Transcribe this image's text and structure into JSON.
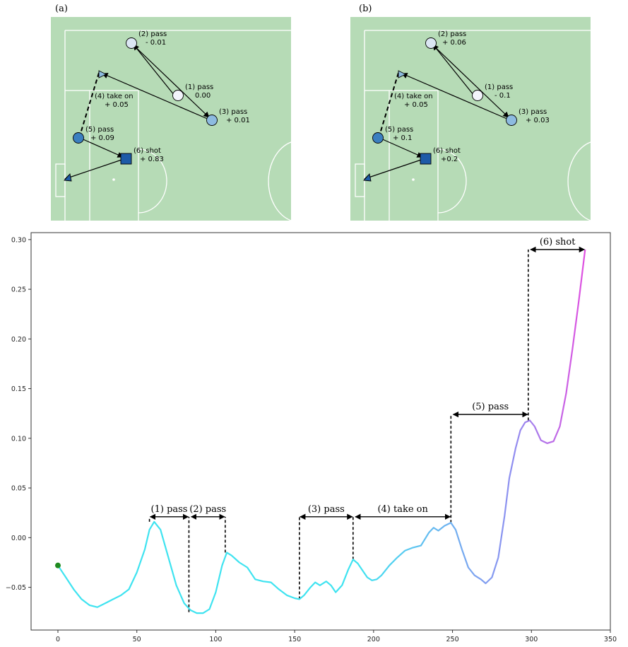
{
  "panels": [
    {
      "label": "(a)",
      "actions": [
        {
          "num": "(1)",
          "type": "pass",
          "value": "0.00",
          "shape": "circle",
          "color": "#f3f4fb"
        },
        {
          "num": "(2)",
          "type": "pass",
          "value": "- 0.01",
          "shape": "circle",
          "color": "#dbe6f3"
        },
        {
          "num": "(3)",
          "type": "pass",
          "value": "+ 0.01",
          "shape": "circle",
          "color": "#8dbbe0"
        },
        {
          "num": "(4)",
          "type": "take on",
          "value": "+ 0.05",
          "shape": "triangle",
          "color": "#8dbbe0"
        },
        {
          "num": "(5)",
          "type": "pass",
          "value": "+ 0.09",
          "shape": "circle",
          "color": "#3b7fc0"
        },
        {
          "num": "(6)",
          "type": "shot",
          "value": "+ 0.83",
          "shape": "square",
          "color": "#1d5ba8"
        }
      ]
    },
    {
      "label": "(b)",
      "actions": [
        {
          "num": "(1)",
          "type": "pass",
          "value": "- 0.1",
          "shape": "circle",
          "color": "#f3f4fb"
        },
        {
          "num": "(2)",
          "type": "pass",
          "value": "+ 0.06",
          "shape": "circle",
          "color": "#dbe6f3"
        },
        {
          "num": "(3)",
          "type": "pass",
          "value": "+ 0.03",
          "shape": "circle",
          "color": "#8dbbe0"
        },
        {
          "num": "(4)",
          "type": "take on",
          "value": "+ 0.05",
          "shape": "triangle",
          "color": "#8dbbe0"
        },
        {
          "num": "(5)",
          "type": "pass",
          "value": "+ 0.1",
          "shape": "circle",
          "color": "#3b7fc0"
        },
        {
          "num": "(6)",
          "type": "shot",
          "value": "+0.2",
          "shape": "square",
          "color": "#1d5ba8"
        }
      ]
    }
  ],
  "colors": {
    "pitch": "#b6dbb6",
    "pitch_lines": "#ffffff",
    "curve_start": "#3fe3f0",
    "curve_mid": "#8f8ff0",
    "curve_end": "#e14fe0",
    "start_marker": "#1f8a1f"
  },
  "chart_data": {
    "type": "line",
    "xlim": [
      -17,
      350
    ],
    "ylim": [
      -0.093,
      0.307
    ],
    "xticks": [
      0,
      50,
      100,
      150,
      200,
      250,
      300,
      350
    ],
    "yticks": [
      -0.05,
      0.0,
      0.05,
      0.1,
      0.15,
      0.2,
      0.25,
      0.3
    ],
    "ytick_labels": [
      "−0.05",
      "0.00",
      "0.05",
      "0.10",
      "0.15",
      "0.20",
      "0.25",
      "0.30"
    ],
    "grid": false,
    "series": [
      {
        "x": [
          0,
          5,
          10,
          15,
          20,
          25,
          30,
          35,
          40,
          45,
          50,
          55,
          58,
          61,
          65,
          70,
          75,
          80,
          84,
          88,
          92,
          96,
          100,
          104,
          107,
          110,
          115,
          120,
          125,
          130,
          135,
          140,
          145,
          150,
          153,
          156,
          160,
          163,
          166,
          170,
          173,
          176,
          180,
          184,
          187,
          190,
          193,
          196,
          199,
          202,
          205,
          210,
          215,
          220,
          225,
          230,
          235,
          238,
          241,
          245,
          249,
          252,
          256,
          260,
          264,
          268,
          271,
          275,
          279,
          283,
          286,
          290,
          293,
          296,
          299,
          302,
          306,
          310,
          314,
          318,
          322,
          326,
          330,
          334
        ],
        "y": [
          -0.028,
          -0.04,
          -0.052,
          -0.062,
          -0.068,
          -0.07,
          -0.066,
          -0.062,
          -0.058,
          -0.052,
          -0.035,
          -0.012,
          0.008,
          0.016,
          0.008,
          -0.02,
          -0.048,
          -0.066,
          -0.073,
          -0.076,
          -0.076,
          -0.072,
          -0.055,
          -0.028,
          -0.015,
          -0.018,
          -0.025,
          -0.03,
          -0.042,
          -0.044,
          -0.045,
          -0.052,
          -0.058,
          -0.061,
          -0.062,
          -0.058,
          -0.05,
          -0.045,
          -0.048,
          -0.044,
          -0.048,
          -0.055,
          -0.048,
          -0.032,
          -0.022,
          -0.026,
          -0.033,
          -0.04,
          -0.043,
          -0.042,
          -0.038,
          -0.028,
          -0.02,
          -0.013,
          -0.01,
          -0.008,
          0.005,
          0.01,
          0.007,
          0.012,
          0.015,
          0.008,
          -0.012,
          -0.03,
          -0.038,
          -0.042,
          -0.046,
          -0.04,
          -0.02,
          0.022,
          0.06,
          0.09,
          0.108,
          0.116,
          0.118,
          0.112,
          0.098,
          0.095,
          0.097,
          0.112,
          0.145,
          0.19,
          0.238,
          0.29
        ]
      }
    ],
    "segments": [
      {
        "label": "(1) pass",
        "x0": 58,
        "x1": 83,
        "y": 0.021
      },
      {
        "label": "(2) pass",
        "x0": 84,
        "x1": 106,
        "y": 0.021
      },
      {
        "label": "(3) pass",
        "x0": 153,
        "x1": 187,
        "y": 0.021
      },
      {
        "label": "(4) take on",
        "x0": 188,
        "x1": 249,
        "y": 0.021
      },
      {
        "label": "(5) pass",
        "x0": 250,
        "x1": 298,
        "y": 0.124
      },
      {
        "label": "(6) shot",
        "x0": 299,
        "x1": 334,
        "y": 0.29
      }
    ],
    "boundaries": [
      {
        "x": 58,
        "y": 0.016
      },
      {
        "x": 83,
        "y": -0.075
      },
      {
        "x": 106,
        "y": -0.015
      },
      {
        "x": 153,
        "y": -0.062
      },
      {
        "x": 187,
        "y": -0.022
      },
      {
        "x": 249,
        "y": 0.015
      },
      {
        "x": 298,
        "y": 0.118
      }
    ]
  }
}
